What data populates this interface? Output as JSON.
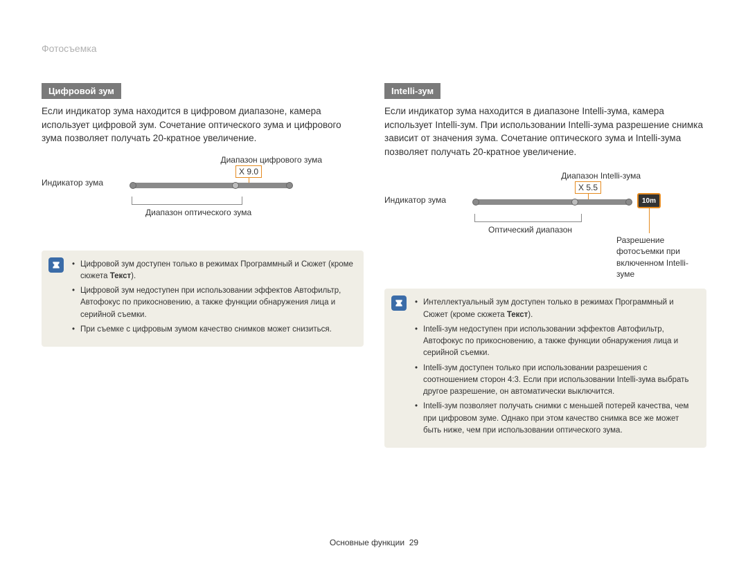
{
  "header": {
    "title": "Фотосъемка"
  },
  "left": {
    "section_title": "Цифровой зум",
    "body": "Если индикатор зума находится в цифровом диапазоне, камера использует цифровой зум. Сочетание оптического зума и цифрового зума позволяет получать 20-кратное увеличение.",
    "diagram": {
      "top_label": "Диапазон цифрового зума",
      "readout": "X 9.0",
      "indicator_label": "Индикатор зума",
      "bottom_label": "Диапазон оптического зума"
    },
    "notes": [
      "Цифровой зум доступен только в режимах Программный и Сюжет (кроме сюжета Текст).",
      "Цифровой зум недоступен при использовании эффектов Автофильтр, Автофокус по прикосновению, а также функции обнаружения лица и серийной съемки.",
      "При съемке с цифровым зумом качество снимков может снизиться."
    ]
  },
  "right": {
    "section_title": "Intelli-зум",
    "body": "Если индикатор зума находится в диапазоне Intelli-зума, камера использует Intelli-зум. При использовании Intelli-зума разрешение снимка зависит от значения зума. Сочетание оптического зума и Intelli-зума позволяет получать 20-кратное увеличение.",
    "diagram": {
      "top_label": "Диапазон Intelli-зума",
      "readout": "X 5.5",
      "indicator_label": "Индикатор зума",
      "bottom_label": "Оптический диапазон",
      "res_badge": "10m",
      "res_caption": "Разрешение фотосъемки при включенном Intelli-зуме"
    },
    "notes": [
      "Интеллектуальный зум доступен только в режимах Программный и Сюжет (кроме сюжета Текст).",
      "Intelli-зум недоступен при использовании эффектов Автофильтр, Автофокус по прикосновению, а также функции обнаружения лица и серийной съемки.",
      "Intelli-зум доступен только при использовании разрешения с соотношением сторон 4:3. Если при использовании Intelli-зума выбрать другое разрешение, он автоматически выключится.",
      "Intelli-зум позволяет получать снимки с меньшей потерей качества, чем при цифровом зуме. Однако при этом качество снимка все же может быть ниже, чем при использовании оптического зума."
    ]
  },
  "footer": {
    "section": "Основные функции",
    "page": "29"
  },
  "colors": {
    "highlight": "#e58a1f",
    "notebg": "#f0eee6",
    "noteicon": "#3b6ca8",
    "bar": "#8a8a8a"
  }
}
